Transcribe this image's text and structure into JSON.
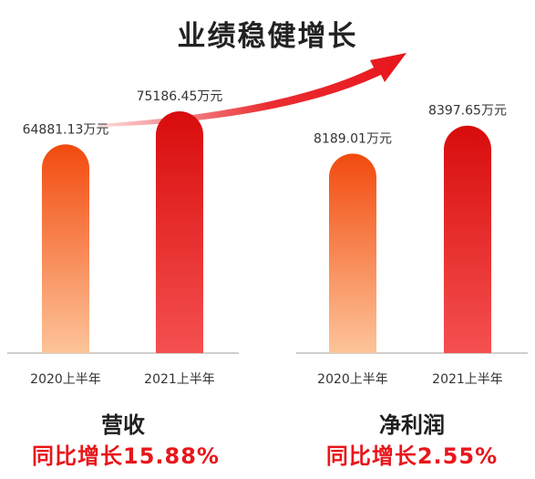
{
  "header": {
    "title": "业绩稳健增长"
  },
  "chart_data": [
    {
      "type": "bar",
      "title": "营收",
      "categories": [
        "2020上半年",
        "2021上半年"
      ],
      "values": [
        64881.13,
        75186.45
      ],
      "value_labels": [
        "64881.13万元",
        "75186.45万元"
      ],
      "growth_text": "同比增长15.88%",
      "xlabel": "",
      "ylabel": "",
      "ylim": [
        0,
        80000
      ]
    },
    {
      "type": "bar",
      "title": "净利润",
      "categories": [
        "2020上半年",
        "2021上半年"
      ],
      "values": [
        8189.01,
        8397.65
      ],
      "value_labels": [
        "8189.01万元",
        "8397.65万元"
      ],
      "growth_text": "同比增长2.55%",
      "xlabel": "",
      "ylabel": "",
      "ylim": [
        6700,
        8600
      ]
    }
  ],
  "colors": {
    "bar_2020_top": "#f24a0e",
    "bar_2020_bottom": "#fdc49a",
    "bar_2021_top": "#d80c0c",
    "bar_2021_bottom": "#f55050",
    "accent_red": "#e8161b",
    "axis": "#bdbdbd"
  },
  "icons": {
    "trend": "growth-arrow-icon"
  }
}
